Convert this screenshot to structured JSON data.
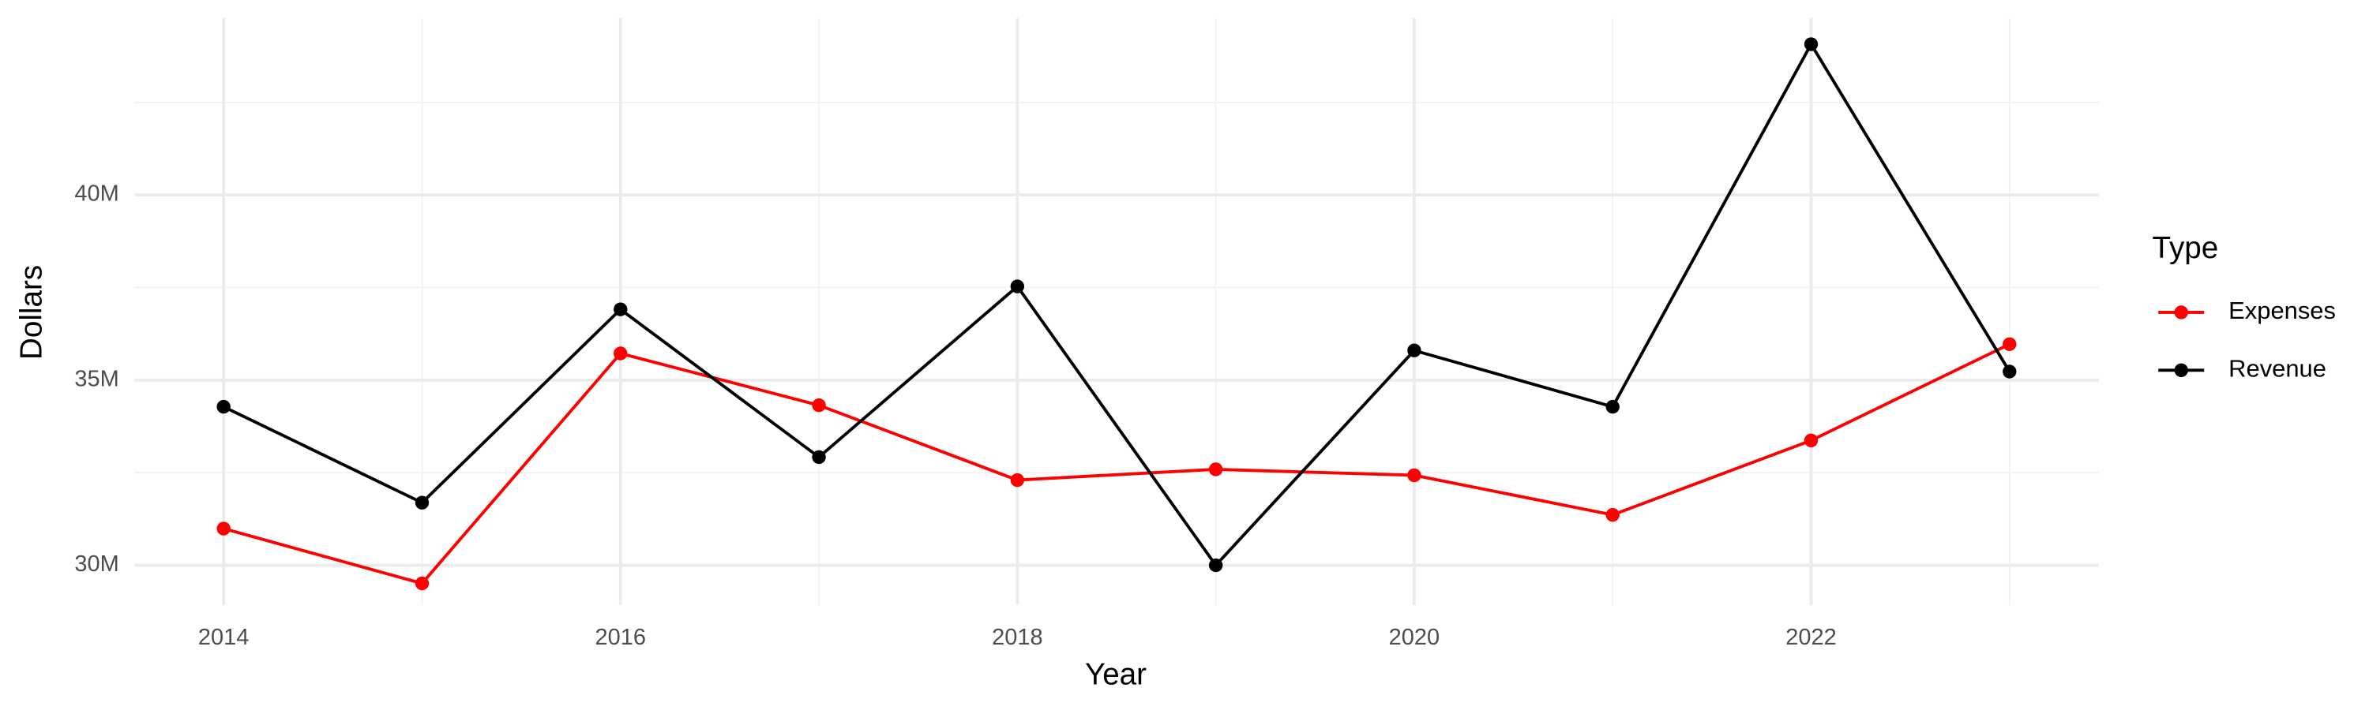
{
  "chart_data": {
    "type": "line",
    "x_label": "Year",
    "y_label": "Dollars",
    "legend_title": "Type",
    "x": [
      2014,
      2015,
      2016,
      2017,
      2018,
      2019,
      2020,
      2021,
      2022,
      2023
    ],
    "series": [
      {
        "name": "Expenses",
        "color": "#ff0000",
        "values": [
          30990000,
          29510000,
          35720000,
          34320000,
          32300000,
          32590000,
          32430000,
          31360000,
          33370000,
          35970000
        ]
      },
      {
        "name": "Revenue",
        "color": "#000000",
        "values": [
          34280000,
          31690000,
          36910000,
          32920000,
          37530000,
          30000000,
          35800000,
          34280000,
          44070000,
          35230000
        ]
      }
    ],
    "xlim": [
      2013.55,
      2023.45
    ],
    "xticks": [
      2014,
      2016,
      2018,
      2020,
      2022
    ],
    "ylim": [
      28930000,
      44770000
    ],
    "yticks": [
      {
        "value": 30000000,
        "label": "30M"
      },
      {
        "value": 35000000,
        "label": "35M"
      },
      {
        "value": 40000000,
        "label": "40M"
      }
    ],
    "grid": true,
    "legend": "right"
  }
}
